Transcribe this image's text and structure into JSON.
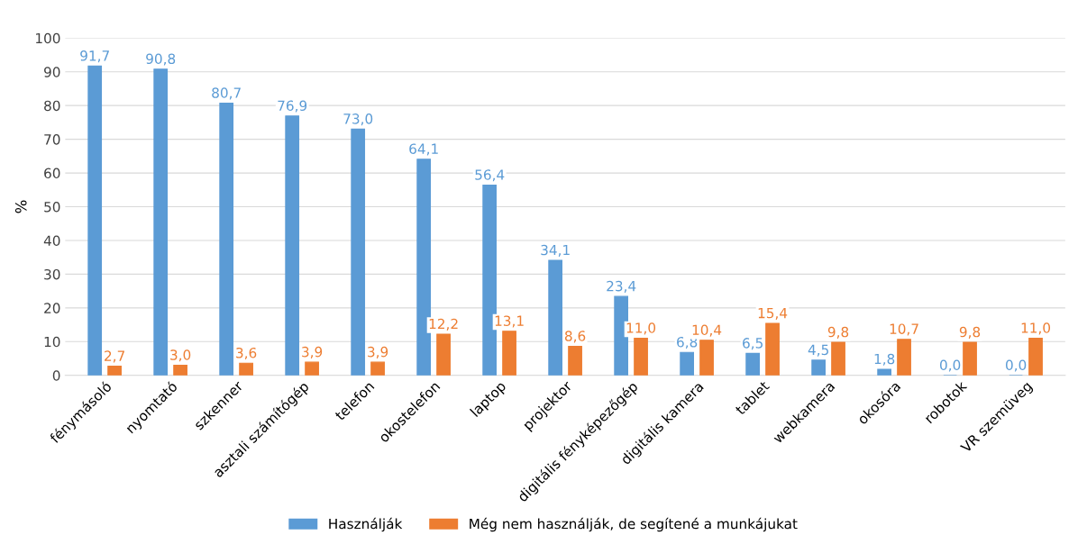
{
  "chart_data": {
    "type": "bar",
    "ylabel": "%",
    "categories": [
      "fénymásoló",
      "nyomtató",
      "szkenner",
      "asztali számítógép",
      "telefon",
      "okostelefon",
      "laptop",
      "projektor",
      "digitális fényképezőgép",
      "digitális kamera",
      "tablet",
      "webkamera",
      "okosóra",
      "robotok",
      "VR szemüveg"
    ],
    "series": [
      {
        "name": "Használják",
        "color": "#5b9bd5",
        "values": [
          91.7,
          90.8,
          80.7,
          76.9,
          73.0,
          64.1,
          56.4,
          34.1,
          23.4,
          6.8,
          6.5,
          4.5,
          1.8,
          0.0,
          0.0
        ],
        "value_labels": [
          "91,7",
          "90,8",
          "80,7",
          "76,9",
          "73,0",
          "64,1",
          "56,4",
          "34,1",
          "23,4",
          "6,8",
          "6,5",
          "4,5",
          "1,8",
          "0,0",
          "0,0"
        ]
      },
      {
        "name": "Még nem használják, de segítené a munkájukat",
        "color": "#ed7d31",
        "values": [
          2.7,
          3.0,
          3.6,
          3.9,
          3.9,
          12.2,
          13.1,
          8.6,
          11.0,
          10.4,
          15.4,
          9.8,
          10.7,
          9.8,
          11.0
        ],
        "value_labels": [
          "2,7",
          "3,0",
          "3,6",
          "3,9",
          "3,9",
          "12,2",
          "13,1",
          "8,6",
          "11,0",
          "10,4",
          "15,4",
          "9,8",
          "10,7",
          "9,8",
          "11,0"
        ]
      }
    ],
    "ylim": [
      0,
      100
    ],
    "yticks": [
      0,
      10,
      20,
      30,
      40,
      50,
      60,
      70,
      80,
      90,
      100
    ],
    "grid": "y",
    "legend": "bottom"
  }
}
